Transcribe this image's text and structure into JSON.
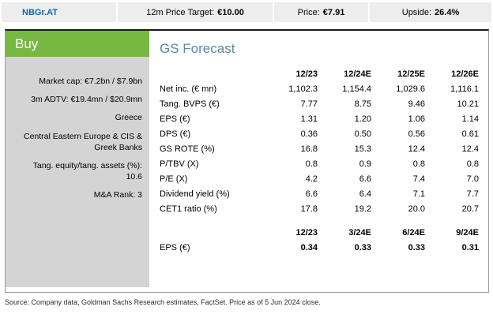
{
  "header": {
    "ticker": "NBGr.AT",
    "price_target_label": "12m Price Target:",
    "price_target_value": "€10.00",
    "price_label": "Price:",
    "price_value": "€7.91",
    "upside_label": "Upside:",
    "upside_value": "26.4%"
  },
  "rating": {
    "label": "Buy",
    "color": "#77b843"
  },
  "sidebar": {
    "items": [
      "Market cap: €7.2bn / $7.9bn",
      "3m ADTV: €19.4mn / $20.9mn",
      "Greece",
      "Central Eastern Europe & CIS & Greek Banks",
      "Tang. equity/tang. assets (%): 10.6",
      "M&A Rank: 3"
    ]
  },
  "forecast": {
    "title": "GS Forecast",
    "annual": {
      "columns": [
        "",
        "12/23",
        "12/24E",
        "12/25E",
        "12/26E"
      ],
      "rows": [
        {
          "label": "Net inc. (€ mn)",
          "values": [
            "1,102.3",
            "1,154.4",
            "1,029.6",
            "1,116.1"
          ]
        },
        {
          "label": "Tang. BVPS (€)",
          "values": [
            "7.77",
            "8.75",
            "9.46",
            "10.21"
          ]
        },
        {
          "label": "EPS (€)",
          "values": [
            "1.31",
            "1.20",
            "1.06",
            "1.14"
          ]
        },
        {
          "label": "DPS (€)",
          "values": [
            "0.36",
            "0.50",
            "0.56",
            "0.61"
          ]
        },
        {
          "label": "GS ROTE (%)",
          "values": [
            "16.8",
            "15.3",
            "12.4",
            "12.4"
          ]
        },
        {
          "label": "P/TBV (X)",
          "values": [
            "0.8",
            "0.9",
            "0.8",
            "0.8"
          ]
        },
        {
          "label": "P/E (X)",
          "values": [
            "4.2",
            "6.6",
            "7.4",
            "7.0"
          ]
        },
        {
          "label": "Dividend yield (%)",
          "values": [
            "6.6",
            "6.4",
            "7.1",
            "7.7"
          ]
        },
        {
          "label": "CET1 ratio (%)",
          "values": [
            "17.8",
            "19.2",
            "20.0",
            "20.7"
          ]
        }
      ]
    },
    "quarterly": {
      "columns": [
        "",
        "12/23",
        "3/24E",
        "6/24E",
        "9/24E"
      ],
      "rows": [
        {
          "label": "EPS (€)",
          "values": [
            "0.34",
            "0.33",
            "0.33",
            "0.31"
          ]
        }
      ]
    }
  },
  "footer": {
    "source": "Source: Company data, Goldman Sachs Research estimates, FactSet. Price as of 5 Jun 2024 close."
  }
}
